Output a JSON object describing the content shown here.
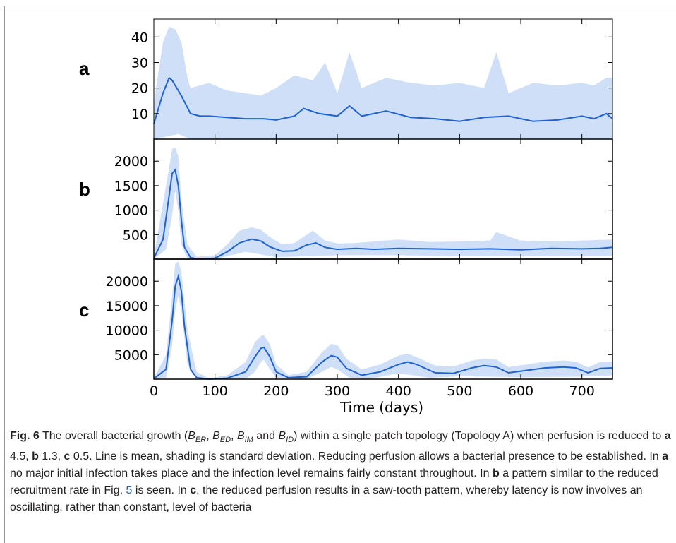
{
  "chart_data": [
    {
      "type": "area",
      "panel": "a",
      "xlim": [
        0,
        750
      ],
      "ylim": [
        0,
        47
      ],
      "yticks": [
        10,
        20,
        30,
        40
      ],
      "series": [
        {
          "name": "",
          "kind": "mean line",
          "x": [
            0,
            15,
            25,
            30,
            35,
            45,
            60,
            75,
            90,
            120,
            150,
            180,
            200,
            230,
            245,
            270,
            300,
            320,
            340,
            380,
            420,
            460,
            500,
            540,
            580,
            620,
            660,
            700,
            720,
            740,
            750
          ],
          "y": [
            6,
            18,
            24,
            23,
            21,
            17,
            10,
            9,
            9,
            8.5,
            8,
            8,
            7.5,
            9,
            12,
            10,
            9,
            13,
            9,
            11,
            8.5,
            8,
            7,
            8.5,
            9,
            7,
            7.5,
            9,
            8,
            10,
            8
          ]
        },
        {
          "name": "",
          "kind": "upper std band",
          "x": [
            0,
            15,
            25,
            35,
            45,
            55,
            60,
            75,
            90,
            120,
            150,
            175,
            200,
            230,
            245,
            260,
            280,
            300,
            320,
            340,
            380,
            420,
            460,
            500,
            540,
            560,
            580,
            620,
            660,
            700,
            720,
            740,
            750
          ],
          "y": [
            14,
            38,
            44,
            43,
            38,
            24,
            20,
            21,
            22,
            19,
            18,
            17,
            20,
            25,
            24,
            23,
            30,
            18,
            34,
            20,
            24,
            22,
            21,
            22,
            20,
            34,
            18,
            22,
            21,
            22,
            21,
            24,
            24
          ]
        },
        {
          "name": "",
          "kind": "lower std band",
          "x": [
            0,
            20,
            40,
            60,
            100,
            200,
            300,
            400,
            500,
            600,
            700,
            750
          ],
          "y": [
            0,
            1,
            2,
            0,
            0,
            0,
            0,
            0,
            0,
            0,
            0,
            0
          ]
        }
      ]
    },
    {
      "type": "area",
      "panel": "b",
      "xlim": [
        0,
        750
      ],
      "ylim": [
        0,
        2450
      ],
      "yticks": [
        500,
        1000,
        1500,
        2000
      ],
      "series": [
        {
          "name": "",
          "kind": "mean line",
          "x": [
            0,
            15,
            25,
            30,
            35,
            40,
            45,
            50,
            60,
            70,
            80,
            100,
            120,
            140,
            160,
            175,
            190,
            210,
            230,
            250,
            265,
            280,
            300,
            330,
            360,
            400,
            450,
            500,
            550,
            600,
            650,
            700,
            730,
            750
          ],
          "y": [
            20,
            400,
            1300,
            1750,
            1820,
            1500,
            800,
            250,
            30,
            10,
            5,
            20,
            150,
            330,
            410,
            370,
            250,
            160,
            170,
            290,
            330,
            240,
            200,
            220,
            200,
            220,
            210,
            200,
            210,
            190,
            220,
            210,
            220,
            240
          ]
        },
        {
          "name": "",
          "kind": "upper std band",
          "x": [
            0,
            20,
            30,
            35,
            40,
            45,
            55,
            70,
            100,
            120,
            140,
            160,
            175,
            190,
            210,
            230,
            260,
            280,
            300,
            330,
            360,
            400,
            450,
            500,
            550,
            560,
            600,
            650,
            700,
            750
          ],
          "y": [
            50,
            1500,
            2250,
            2280,
            2100,
            1200,
            300,
            50,
            80,
            300,
            580,
            650,
            600,
            450,
            300,
            330,
            580,
            380,
            320,
            330,
            360,
            400,
            350,
            360,
            380,
            550,
            380,
            360,
            380,
            400
          ]
        },
        {
          "name": "",
          "kind": "lower std band",
          "x": [
            0,
            20,
            30,
            35,
            40,
            45,
            55,
            70,
            100,
            150,
            200,
            300,
            400,
            500,
            600,
            700,
            750
          ],
          "y": [
            0,
            200,
            900,
            1400,
            1000,
            300,
            0,
            0,
            0,
            150,
            40,
            80,
            80,
            60,
            60,
            60,
            60
          ]
        }
      ]
    },
    {
      "type": "area",
      "panel": "c",
      "xlim": [
        0,
        750
      ],
      "ylim": [
        0,
        24500
      ],
      "yticks": [
        5000,
        10000,
        15000,
        20000
      ],
      "series": [
        {
          "name": "",
          "kind": "mean line",
          "x": [
            0,
            20,
            30,
            35,
            40,
            45,
            50,
            60,
            70,
            90,
            120,
            150,
            165,
            175,
            180,
            190,
            200,
            220,
            250,
            275,
            290,
            300,
            315,
            340,
            370,
            400,
            415,
            430,
            460,
            490,
            520,
            540,
            560,
            580,
            610,
            640,
            670,
            690,
            710,
            730,
            750
          ],
          "y": [
            100,
            2000,
            12000,
            19000,
            21000,
            18000,
            11000,
            2000,
            300,
            20,
            200,
            1500,
            4500,
            6300,
            6500,
            4500,
            1500,
            300,
            500,
            3500,
            4800,
            4500,
            2200,
            800,
            1500,
            3000,
            3500,
            3000,
            1300,
            1200,
            2300,
            2800,
            2500,
            1300,
            1800,
            2300,
            2500,
            2300,
            1300,
            2200,
            2300
          ]
        },
        {
          "name": "",
          "kind": "upper std band",
          "x": [
            0,
            20,
            30,
            35,
            40,
            45,
            55,
            70,
            90,
            120,
            150,
            165,
            175,
            180,
            190,
            200,
            220,
            250,
            275,
            290,
            300,
            315,
            340,
            370,
            400,
            415,
            430,
            460,
            490,
            520,
            540,
            560,
            580,
            610,
            640,
            670,
            690,
            710,
            730,
            750
          ],
          "y": [
            200,
            5000,
            17000,
            23500,
            24000,
            22000,
            10000,
            1500,
            100,
            800,
            3500,
            7500,
            8800,
            9000,
            7000,
            3000,
            800,
            1500,
            5500,
            7200,
            7000,
            4200,
            2000,
            3000,
            4800,
            5200,
            4500,
            2800,
            2600,
            3800,
            4200,
            4000,
            2500,
            3000,
            3600,
            3800,
            3600,
            2400,
            3500,
            3600
          ]
        },
        {
          "name": "",
          "kind": "lower std band",
          "x": [
            0,
            20,
            30,
            35,
            40,
            45,
            55,
            70,
            100,
            150,
            165,
            175,
            180,
            190,
            200,
            250,
            275,
            290,
            300,
            320,
            350,
            400,
            450,
            500,
            600,
            700,
            750
          ],
          "y": [
            0,
            200,
            7000,
            14000,
            17000,
            14000,
            3000,
            0,
            0,
            0,
            1500,
            3500,
            4000,
            2000,
            200,
            0,
            1500,
            2500,
            2000,
            300,
            0,
            1200,
            300,
            600,
            400,
            500,
            800
          ]
        }
      ]
    }
  ],
  "axes": {
    "xticks": [
      0,
      100,
      200,
      300,
      400,
      500,
      600,
      700
    ],
    "xlabel": "Time (days)",
    "tick_labels": {
      "a": [
        "10",
        "20",
        "30",
        "40"
      ],
      "b": [
        "500",
        "1000",
        "1500",
        "2000"
      ],
      "c": [
        "5000",
        "10000",
        "15000",
        "20000"
      ],
      "x": [
        "0",
        "100",
        "200",
        "300",
        "400",
        "500",
        "600",
        "700"
      ]
    }
  },
  "panel_labels": {
    "a": "a",
    "b": "b",
    "c": "c"
  },
  "colors": {
    "line": "#1f63d2",
    "band": "#cfdff7",
    "axis": "#000000"
  },
  "caption": {
    "fig_label": "Fig. 6",
    "t1": "The overall bacterial growth (",
    "v1": "B",
    "s1": "ER",
    "t2": ", ",
    "v2": "B",
    "s2": "ED",
    "t3": ", ",
    "v3": "B",
    "s3": "IM",
    "t4": " and ",
    "v4": "B",
    "s4": "ID",
    "t5": ") within a single patch topology (Topology A) when perfusion is reduced to ",
    "ba": "a",
    "t6": " 4.5, ",
    "bb": "b",
    "t7": " 1.3, ",
    "bc": "c",
    "t8": " 0.5. Line is mean, shading is standard deviation. Reducing perfusion allows a bacterial presence to be established. In ",
    "ba2": "a",
    "t9": " no major initial infection takes place and the infection level remains fairly constant throughout. In ",
    "bb2": "b",
    "t10": " a pattern similar to the reduced recruitment rate in Fig. ",
    "ref": "5",
    "t11": " is seen. In ",
    "bc2": "c",
    "t12": ", the reduced perfusion results in a saw-tooth pattern, whereby latency is now involves an oscillating, rather than constant, level of bacteria"
  }
}
